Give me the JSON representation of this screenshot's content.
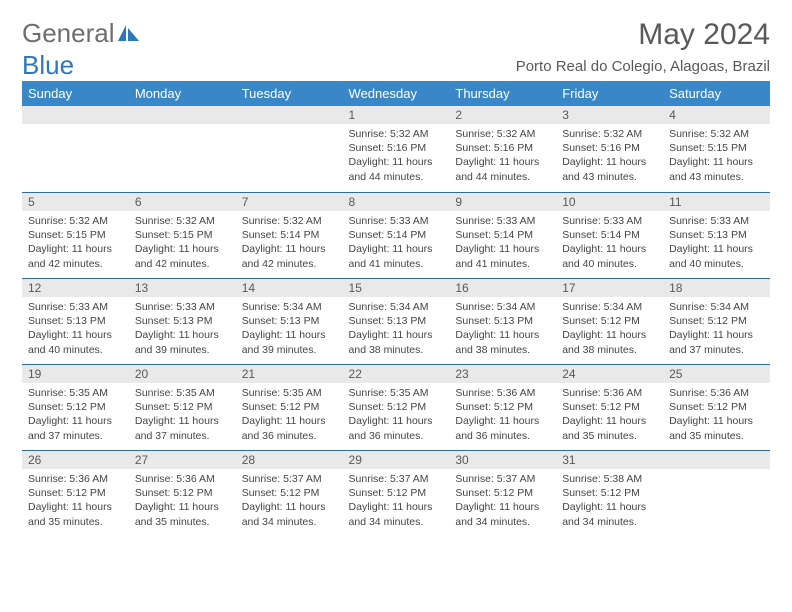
{
  "brand": {
    "part1": "General",
    "part2": "Blue"
  },
  "title": "May 2024",
  "location": "Porto Real do Colegio, Alagoas, Brazil",
  "colors": {
    "header_bg": "#3a87c8",
    "header_text": "#ffffff",
    "daynum_bg": "#e9e9e9",
    "rule": "#2f6ca3",
    "text": "#454545",
    "title_text": "#59595b",
    "logo_gray": "#6e6e6e",
    "logo_blue": "#2f77bb"
  },
  "dayHeaders": [
    "Sunday",
    "Monday",
    "Tuesday",
    "Wednesday",
    "Thursday",
    "Friday",
    "Saturday"
  ],
  "weeks": [
    [
      null,
      null,
      null,
      {
        "n": "1",
        "sr": "Sunrise: 5:32 AM",
        "ss": "Sunset: 5:16 PM",
        "dl": "Daylight: 11 hours and 44 minutes."
      },
      {
        "n": "2",
        "sr": "Sunrise: 5:32 AM",
        "ss": "Sunset: 5:16 PM",
        "dl": "Daylight: 11 hours and 44 minutes."
      },
      {
        "n": "3",
        "sr": "Sunrise: 5:32 AM",
        "ss": "Sunset: 5:16 PM",
        "dl": "Daylight: 11 hours and 43 minutes."
      },
      {
        "n": "4",
        "sr": "Sunrise: 5:32 AM",
        "ss": "Sunset: 5:15 PM",
        "dl": "Daylight: 11 hours and 43 minutes."
      }
    ],
    [
      {
        "n": "5",
        "sr": "Sunrise: 5:32 AM",
        "ss": "Sunset: 5:15 PM",
        "dl": "Daylight: 11 hours and 42 minutes."
      },
      {
        "n": "6",
        "sr": "Sunrise: 5:32 AM",
        "ss": "Sunset: 5:15 PM",
        "dl": "Daylight: 11 hours and 42 minutes."
      },
      {
        "n": "7",
        "sr": "Sunrise: 5:32 AM",
        "ss": "Sunset: 5:14 PM",
        "dl": "Daylight: 11 hours and 42 minutes."
      },
      {
        "n": "8",
        "sr": "Sunrise: 5:33 AM",
        "ss": "Sunset: 5:14 PM",
        "dl": "Daylight: 11 hours and 41 minutes."
      },
      {
        "n": "9",
        "sr": "Sunrise: 5:33 AM",
        "ss": "Sunset: 5:14 PM",
        "dl": "Daylight: 11 hours and 41 minutes."
      },
      {
        "n": "10",
        "sr": "Sunrise: 5:33 AM",
        "ss": "Sunset: 5:14 PM",
        "dl": "Daylight: 11 hours and 40 minutes."
      },
      {
        "n": "11",
        "sr": "Sunrise: 5:33 AM",
        "ss": "Sunset: 5:13 PM",
        "dl": "Daylight: 11 hours and 40 minutes."
      }
    ],
    [
      {
        "n": "12",
        "sr": "Sunrise: 5:33 AM",
        "ss": "Sunset: 5:13 PM",
        "dl": "Daylight: 11 hours and 40 minutes."
      },
      {
        "n": "13",
        "sr": "Sunrise: 5:33 AM",
        "ss": "Sunset: 5:13 PM",
        "dl": "Daylight: 11 hours and 39 minutes."
      },
      {
        "n": "14",
        "sr": "Sunrise: 5:34 AM",
        "ss": "Sunset: 5:13 PM",
        "dl": "Daylight: 11 hours and 39 minutes."
      },
      {
        "n": "15",
        "sr": "Sunrise: 5:34 AM",
        "ss": "Sunset: 5:13 PM",
        "dl": "Daylight: 11 hours and 38 minutes."
      },
      {
        "n": "16",
        "sr": "Sunrise: 5:34 AM",
        "ss": "Sunset: 5:13 PM",
        "dl": "Daylight: 11 hours and 38 minutes."
      },
      {
        "n": "17",
        "sr": "Sunrise: 5:34 AM",
        "ss": "Sunset: 5:12 PM",
        "dl": "Daylight: 11 hours and 38 minutes."
      },
      {
        "n": "18",
        "sr": "Sunrise: 5:34 AM",
        "ss": "Sunset: 5:12 PM",
        "dl": "Daylight: 11 hours and 37 minutes."
      }
    ],
    [
      {
        "n": "19",
        "sr": "Sunrise: 5:35 AM",
        "ss": "Sunset: 5:12 PM",
        "dl": "Daylight: 11 hours and 37 minutes."
      },
      {
        "n": "20",
        "sr": "Sunrise: 5:35 AM",
        "ss": "Sunset: 5:12 PM",
        "dl": "Daylight: 11 hours and 37 minutes."
      },
      {
        "n": "21",
        "sr": "Sunrise: 5:35 AM",
        "ss": "Sunset: 5:12 PM",
        "dl": "Daylight: 11 hours and 36 minutes."
      },
      {
        "n": "22",
        "sr": "Sunrise: 5:35 AM",
        "ss": "Sunset: 5:12 PM",
        "dl": "Daylight: 11 hours and 36 minutes."
      },
      {
        "n": "23",
        "sr": "Sunrise: 5:36 AM",
        "ss": "Sunset: 5:12 PM",
        "dl": "Daylight: 11 hours and 36 minutes."
      },
      {
        "n": "24",
        "sr": "Sunrise: 5:36 AM",
        "ss": "Sunset: 5:12 PM",
        "dl": "Daylight: 11 hours and 35 minutes."
      },
      {
        "n": "25",
        "sr": "Sunrise: 5:36 AM",
        "ss": "Sunset: 5:12 PM",
        "dl": "Daylight: 11 hours and 35 minutes."
      }
    ],
    [
      {
        "n": "26",
        "sr": "Sunrise: 5:36 AM",
        "ss": "Sunset: 5:12 PM",
        "dl": "Daylight: 11 hours and 35 minutes."
      },
      {
        "n": "27",
        "sr": "Sunrise: 5:36 AM",
        "ss": "Sunset: 5:12 PM",
        "dl": "Daylight: 11 hours and 35 minutes."
      },
      {
        "n": "28",
        "sr": "Sunrise: 5:37 AM",
        "ss": "Sunset: 5:12 PM",
        "dl": "Daylight: 11 hours and 34 minutes."
      },
      {
        "n": "29",
        "sr": "Sunrise: 5:37 AM",
        "ss": "Sunset: 5:12 PM",
        "dl": "Daylight: 11 hours and 34 minutes."
      },
      {
        "n": "30",
        "sr": "Sunrise: 5:37 AM",
        "ss": "Sunset: 5:12 PM",
        "dl": "Daylight: 11 hours and 34 minutes."
      },
      {
        "n": "31",
        "sr": "Sunrise: 5:38 AM",
        "ss": "Sunset: 5:12 PM",
        "dl": "Daylight: 11 hours and 34 minutes."
      },
      null
    ]
  ]
}
